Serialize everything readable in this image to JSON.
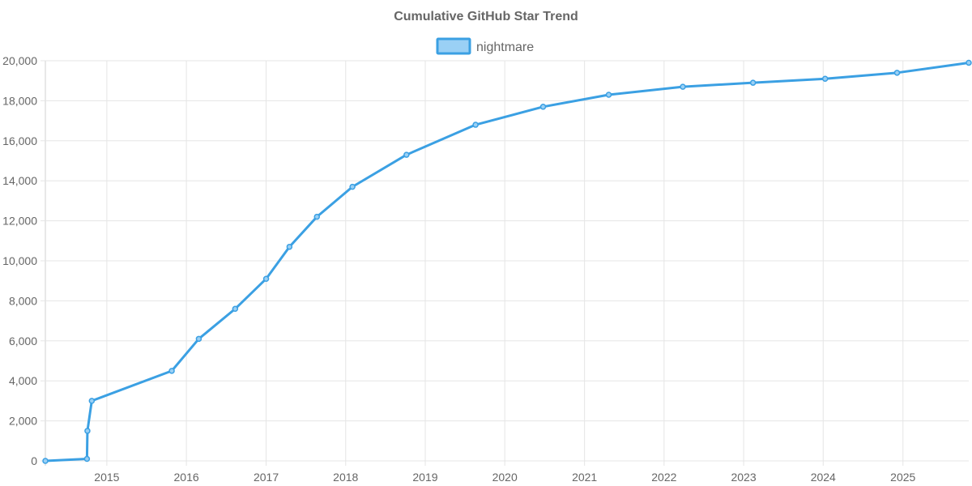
{
  "colors": {
    "line": "#3ba0e3",
    "fill": "#9ad0f5",
    "grid": "#e5e5e5",
    "text": "#666666"
  },
  "chart_data": {
    "type": "line",
    "title": "Cumulative GitHub Star Trend",
    "legend": {
      "position": "top",
      "entries": [
        "nightmare"
      ]
    },
    "grid": true,
    "xlabel": "",
    "ylabel": "",
    "xlim": [
      "2014-03-25",
      "2025-10-30"
    ],
    "ylim": [
      0,
      20000
    ],
    "x_ticks": [
      "2015",
      "2016",
      "2017",
      "2018",
      "2019",
      "2020",
      "2021",
      "2022",
      "2023",
      "2024",
      "2025"
    ],
    "y_ticks": [
      "0",
      "2,000",
      "4,000",
      "6,000",
      "8,000",
      "10,000",
      "12,000",
      "14,000",
      "16,000",
      "18,000",
      "20,000"
    ],
    "series": [
      {
        "name": "nightmare",
        "points": [
          {
            "x": "2014-03-25",
            "y": 0
          },
          {
            "x": "2014-10-02",
            "y": 100
          },
          {
            "x": "2014-10-04",
            "y": 1500
          },
          {
            "x": "2014-10-24",
            "y": 3000
          },
          {
            "x": "2015-10-26",
            "y": 4500
          },
          {
            "x": "2016-02-27",
            "y": 6100
          },
          {
            "x": "2016-08-12",
            "y": 7600
          },
          {
            "x": "2017-01-01",
            "y": 9100
          },
          {
            "x": "2017-04-18",
            "y": 10700
          },
          {
            "x": "2017-08-22",
            "y": 12200
          },
          {
            "x": "2018-02-01",
            "y": 13700
          },
          {
            "x": "2018-10-07",
            "y": 15300
          },
          {
            "x": "2019-08-20",
            "y": 16800
          },
          {
            "x": "2020-06-25",
            "y": 17700
          },
          {
            "x": "2021-04-22",
            "y": 18300
          },
          {
            "x": "2022-03-28",
            "y": 18700
          },
          {
            "x": "2023-02-13",
            "y": 18900
          },
          {
            "x": "2024-01-10",
            "y": 19100
          },
          {
            "x": "2024-12-05",
            "y": 19400
          },
          {
            "x": "2025-10-30",
            "y": 19900
          }
        ]
      }
    ]
  }
}
